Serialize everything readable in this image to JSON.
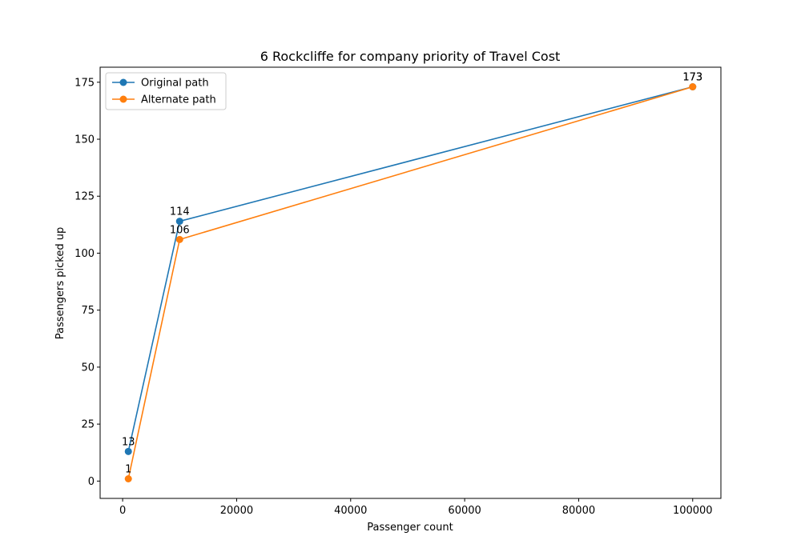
{
  "chart_data": {
    "type": "line",
    "title": "6 Rockcliffe for company priority of Travel Cost",
    "xlabel": "Passenger count",
    "ylabel": "Passengers picked up",
    "xlim": [
      -3950,
      104950
    ],
    "ylim": [
      -7.6,
      181.6
    ],
    "xticks": [
      0,
      20000,
      40000,
      60000,
      80000,
      100000
    ],
    "yticks": [
      0,
      25,
      50,
      75,
      100,
      125,
      150,
      175
    ],
    "legend_position": "upper-left",
    "grid": false,
    "series": [
      {
        "name": "Original path",
        "color": "#1f77b4",
        "x": [
          1000,
          10000,
          100000
        ],
        "y": [
          13,
          114,
          173
        ],
        "labels": [
          "13",
          "114",
          "173"
        ]
      },
      {
        "name": "Alternate path",
        "color": "#ff7f0e",
        "x": [
          1000,
          10000,
          100000
        ],
        "y": [
          1,
          106,
          173
        ],
        "labels": [
          "1",
          "106",
          "173"
        ]
      }
    ]
  }
}
